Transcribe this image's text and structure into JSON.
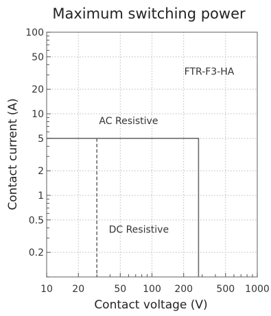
{
  "chart_data": {
    "type": "line",
    "title": "Maximum switching power",
    "xlabel": "Contact voltage (V)",
    "ylabel": "Contact current (A)",
    "x_scale": "log",
    "y_scale": "log",
    "xlim": [
      10,
      1000
    ],
    "ylim": [
      0.1,
      100
    ],
    "x_ticks": [
      10,
      20,
      50,
      100,
      200,
      500,
      1000
    ],
    "x_tick_labels": [
      "10",
      "20",
      "50",
      "100",
      "200",
      "500",
      "1000"
    ],
    "y_ticks": [
      0.2,
      0.5,
      1,
      2,
      5,
      10,
      20,
      50,
      100
    ],
    "y_tick_labels": [
      "0.2",
      "0.5",
      "1",
      "2",
      "5",
      "10",
      "20",
      "50",
      "100"
    ],
    "grid": true,
    "annotations": [
      {
        "text": "FTR-F3-HA",
        "x": 350,
        "y": 30
      },
      {
        "text": "AC Resistive",
        "x": 60,
        "y": 7.5
      },
      {
        "text": "DC Resistive",
        "x": 75,
        "y": 0.35
      }
    ],
    "series": [
      {
        "style": "solid",
        "x": [
          10,
          277,
          277
        ],
        "y": [
          5,
          5,
          0.1
        ]
      },
      {
        "style": "dashed",
        "x": [
          30,
          30
        ],
        "y": [
          5,
          0.1
        ]
      }
    ]
  }
}
